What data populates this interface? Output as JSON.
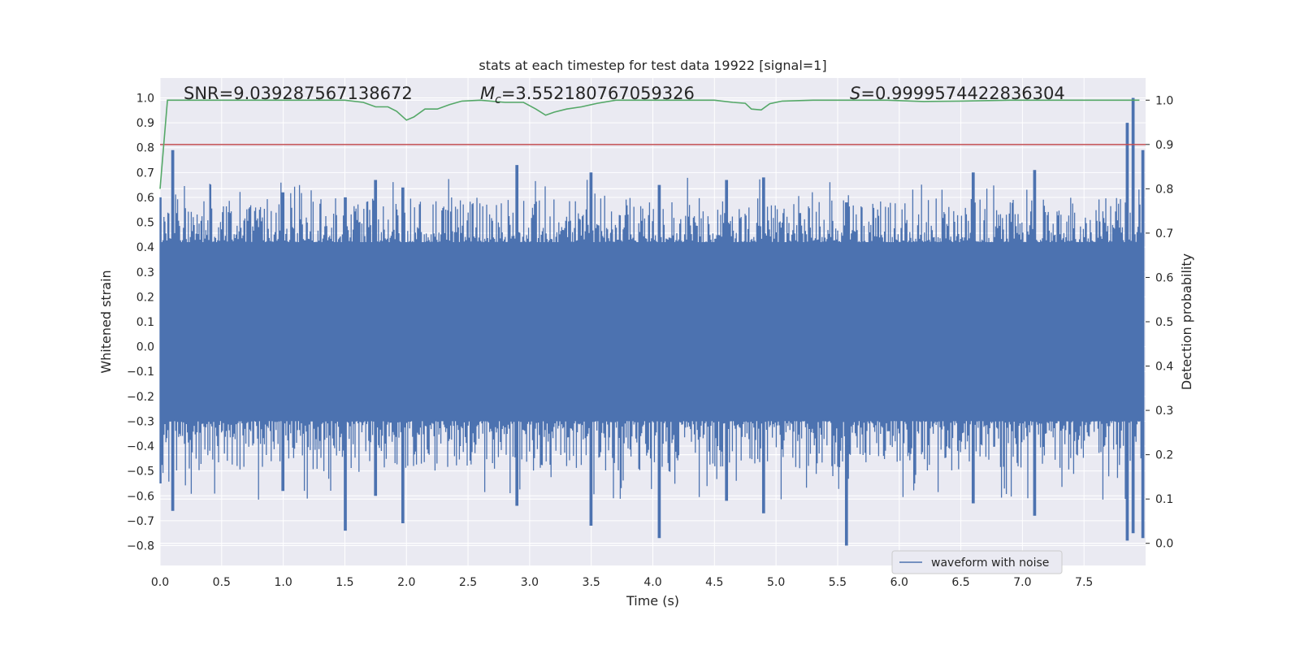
{
  "chart_data": {
    "type": "line",
    "title": "stats at each timestep for test data 19922 [signal=1]",
    "xlabel": "Time (s)",
    "ylabel": "Whitened strain",
    "y2label": "Detection probability",
    "xlim": [
      0.0,
      8.0
    ],
    "ylim": [
      -0.88,
      1.08
    ],
    "y2lim": [
      -0.05,
      1.05
    ],
    "x_ticks": [
      "0.0",
      "0.5",
      "1.0",
      "1.5",
      "2.0",
      "2.5",
      "3.0",
      "3.5",
      "4.0",
      "4.5",
      "5.0",
      "5.5",
      "6.0",
      "6.5",
      "7.0",
      "7.5"
    ],
    "y_ticks": [
      "1.0",
      "0.9",
      "0.8",
      "0.7",
      "0.6",
      "0.5",
      "0.4",
      "0.3",
      "0.2",
      "0.1",
      "0.0",
      "−0.1",
      "−0.2",
      "−0.3",
      "−0.4",
      "−0.5",
      "−0.6",
      "−0.7",
      "−0.8"
    ],
    "y2_ticks": [
      "1.0",
      "0.9",
      "0.8",
      "0.7",
      "0.6",
      "0.5",
      "0.4",
      "0.3",
      "0.2",
      "0.1",
      "0.0"
    ],
    "grid": true,
    "legend_position": "lower-right",
    "annotations": {
      "snr": "SNR=9.039287567138672",
      "mc_symbol": "M",
      "mc_sub": "c",
      "mc_value": "=3.552180767059326",
      "s_symbol": "S",
      "s_value": "=0.9999574422836304"
    },
    "threshold": 0.9,
    "colors": {
      "waveform": "#4c72b0",
      "probability": "#55a868",
      "threshold": "#c44e52",
      "background": "#eaeaf2",
      "grid": "#ffffff"
    },
    "series": [
      {
        "name": "waveform with noise",
        "axis": "left",
        "style": "dense-noise",
        "core_band": [
          -0.18,
          0.3
        ],
        "envelope_peak_points": [
          {
            "x": 0.0,
            "max": 0.6,
            "min": -0.55
          },
          {
            "x": 0.1,
            "max": 0.79,
            "min": -0.66
          },
          {
            "x": 1.0,
            "max": 0.62,
            "min": -0.58
          },
          {
            "x": 1.5,
            "max": 0.6,
            "min": -0.74
          },
          {
            "x": 1.75,
            "max": 0.67,
            "min": -0.6
          },
          {
            "x": 1.97,
            "max": 0.64,
            "min": -0.71
          },
          {
            "x": 2.9,
            "max": 0.73,
            "min": -0.64
          },
          {
            "x": 3.5,
            "max": 0.7,
            "min": -0.72
          },
          {
            "x": 4.05,
            "max": 0.65,
            "min": -0.77
          },
          {
            "x": 4.6,
            "max": 0.67,
            "min": -0.62
          },
          {
            "x": 4.9,
            "max": 0.68,
            "min": -0.67
          },
          {
            "x": 5.57,
            "max": 0.58,
            "min": -0.8
          },
          {
            "x": 6.6,
            "max": 0.7,
            "min": -0.63
          },
          {
            "x": 7.1,
            "max": 0.71,
            "min": -0.68
          },
          {
            "x": 7.85,
            "max": 0.9,
            "min": -0.78
          },
          {
            "x": 7.9,
            "max": 1.0,
            "min": -0.75
          },
          {
            "x": 7.98,
            "max": 0.79,
            "min": -0.77
          }
        ]
      },
      {
        "name": "",
        "axis": "right",
        "style": "line",
        "x": [
          0.0,
          0.06,
          0.1,
          0.5,
          1.0,
          1.5,
          1.65,
          1.75,
          1.85,
          1.92,
          2.0,
          2.06,
          2.15,
          2.25,
          2.35,
          2.45,
          2.6,
          2.8,
          2.95,
          3.05,
          3.13,
          3.2,
          3.3,
          3.42,
          3.55,
          3.7,
          3.9,
          4.2,
          4.5,
          4.65,
          4.75,
          4.8,
          4.88,
          4.95,
          5.05,
          5.3,
          5.6,
          5.9,
          6.2,
          6.5,
          6.9,
          7.3,
          7.7,
          7.95
        ],
        "y": [
          0.8,
          1.0,
          1.0,
          1.0,
          1.0,
          1.0,
          0.995,
          0.985,
          0.985,
          0.975,
          0.955,
          0.962,
          0.98,
          0.98,
          0.99,
          0.998,
          1.0,
          0.995,
          0.995,
          0.98,
          0.966,
          0.973,
          0.98,
          0.985,
          0.993,
          1.0,
          1.0,
          1.0,
          1.0,
          0.995,
          0.993,
          0.98,
          0.978,
          0.992,
          0.998,
          1.0,
          1.0,
          1.0,
          0.997,
          0.998,
          1.0,
          1.0,
          1.0,
          1.0
        ]
      }
    ]
  }
}
